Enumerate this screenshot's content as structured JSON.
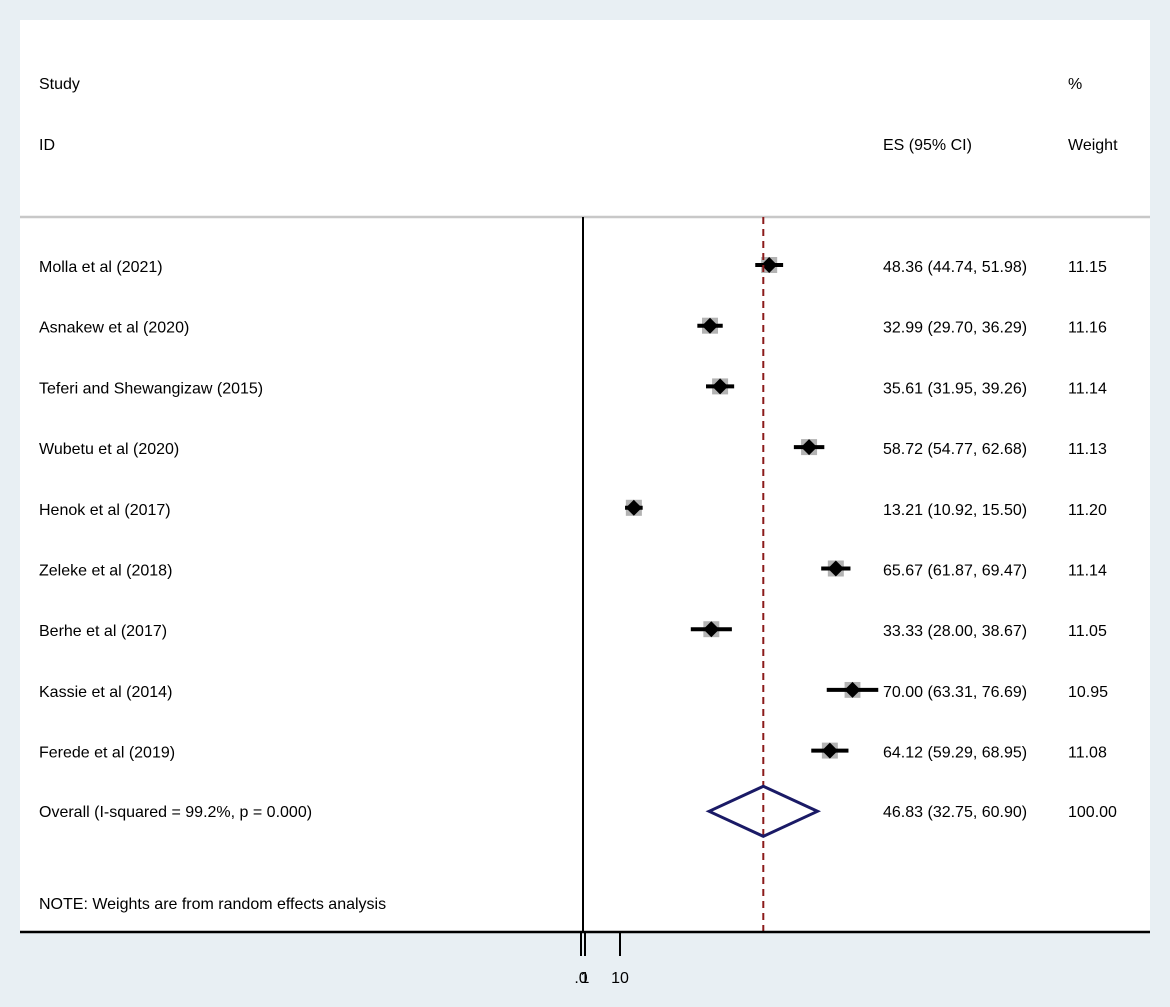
{
  "chart_data": {
    "type": "forest",
    "header": {
      "study_label": "Study",
      "id_label": "ID",
      "es_label": "ES (95% CI)",
      "pct_label": "%",
      "weight_label": "Weight"
    },
    "studies": [
      {
        "name": "Molla et al (2021)",
        "es": 48.36,
        "lo": 44.74,
        "hi": 51.98,
        "es_text": "48.36 (44.74, 51.98)",
        "weight": 11.15,
        "weight_text": "11.15"
      },
      {
        "name": "Asnakew et al (2020)",
        "es": 32.99,
        "lo": 29.7,
        "hi": 36.29,
        "es_text": "32.99 (29.70, 36.29)",
        "weight": 11.16,
        "weight_text": "11.16"
      },
      {
        "name": "Teferi and Shewangizaw  (2015)",
        "es": 35.61,
        "lo": 31.95,
        "hi": 39.26,
        "es_text": "35.61 (31.95, 39.26)",
        "weight": 11.14,
        "weight_text": "11.14"
      },
      {
        "name": "Wubetu et al (2020)",
        "es": 58.72,
        "lo": 54.77,
        "hi": 62.68,
        "es_text": "58.72 (54.77, 62.68)",
        "weight": 11.13,
        "weight_text": "11.13"
      },
      {
        "name": "Henok et al (2017)",
        "es": 13.21,
        "lo": 10.92,
        "hi": 15.5,
        "es_text": "13.21 (10.92, 15.50)",
        "weight": 11.2,
        "weight_text": "11.20"
      },
      {
        "name": "Zeleke et al (2018)",
        "es": 65.67,
        "lo": 61.87,
        "hi": 69.47,
        "es_text": "65.67 (61.87, 69.47)",
        "weight": 11.14,
        "weight_text": "11.14"
      },
      {
        "name": "Berhe et al  (2017)",
        "es": 33.33,
        "lo": 28.0,
        "hi": 38.67,
        "es_text": "33.33 (28.00, 38.67)",
        "weight": 11.05,
        "weight_text": "11.05"
      },
      {
        "name": "Kassie et al (2014)",
        "es": 70.0,
        "lo": 63.31,
        "hi": 76.69,
        "es_text": "70.00 (63.31, 76.69)",
        "weight": 10.95,
        "weight_text": "10.95"
      },
      {
        "name": "Ferede et al (2019)",
        "es": 64.12,
        "lo": 59.29,
        "hi": 68.95,
        "es_text": "64.12 (59.29, 68.95)",
        "weight": 11.08,
        "weight_text": "11.08"
      }
    ],
    "overall": {
      "label": "Overall  (I-squared = 99.2%, p = 0.000)",
      "es": 46.83,
      "lo": 32.75,
      "hi": 60.9,
      "es_text": "46.83 (32.75, 60.90)",
      "weight_text": "100.00"
    },
    "note": "NOTE: Weights are from random effects analysis",
    "x_ticks": [
      {
        "value": -1,
        "label": ".0"
      },
      {
        "value": 0,
        "label": "1"
      },
      {
        "value": 10,
        "label": "10"
      }
    ],
    "null_line": 0,
    "colors": {
      "plot_bg": "#ffffff",
      "page_bg": "#e8eff3",
      "overall_line": "#8b1a1a",
      "diamond": "#1a1a66",
      "weight_box": "#b3b3b3",
      "separator": "#c8c8c8"
    }
  }
}
